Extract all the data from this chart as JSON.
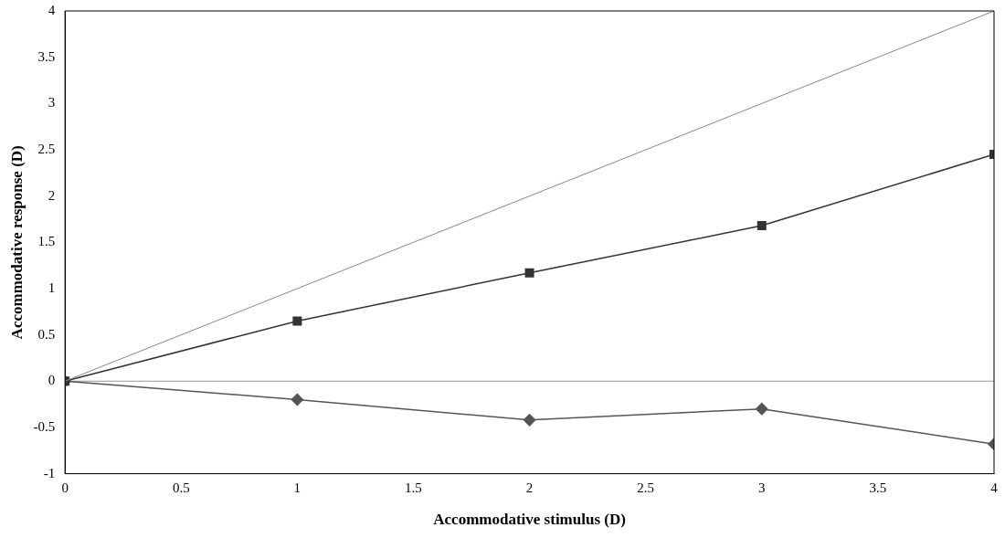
{
  "chart_data": {
    "type": "line",
    "xlabel": "Accommodative stimulus (D)",
    "ylabel": "Accommodative response (D)",
    "xlim": [
      0,
      4
    ],
    "xticks": [
      0,
      0.5,
      1,
      1.5,
      2,
      2.5,
      3,
      3.5,
      4
    ],
    "ylim": [
      -1,
      4
    ],
    "yticks": [
      -1,
      -0.5,
      0,
      0.5,
      1,
      1.5,
      2,
      2.5,
      3,
      3.5,
      4
    ],
    "grid": false,
    "ref_lines": [
      {
        "axis": "y",
        "value": 0,
        "color": "#999999"
      }
    ],
    "legend": false,
    "line_style": "solid",
    "series": [
      {
        "color": "#888888",
        "x": [
          0,
          4
        ],
        "values": [
          0,
          4
        ],
        "marker": "none"
      },
      {
        "color": "#333333",
        "x": [
          0,
          1,
          2,
          3,
          4
        ],
        "values": [
          0,
          0.65,
          1.17,
          1.68,
          2.45
        ],
        "marker": "square"
      },
      {
        "color": "#555555",
        "x": [
          0,
          1,
          2,
          3,
          4
        ],
        "values": [
          0,
          -0.2,
          -0.42,
          -0.3,
          -0.68
        ],
        "marker": "diamond"
      }
    ]
  }
}
